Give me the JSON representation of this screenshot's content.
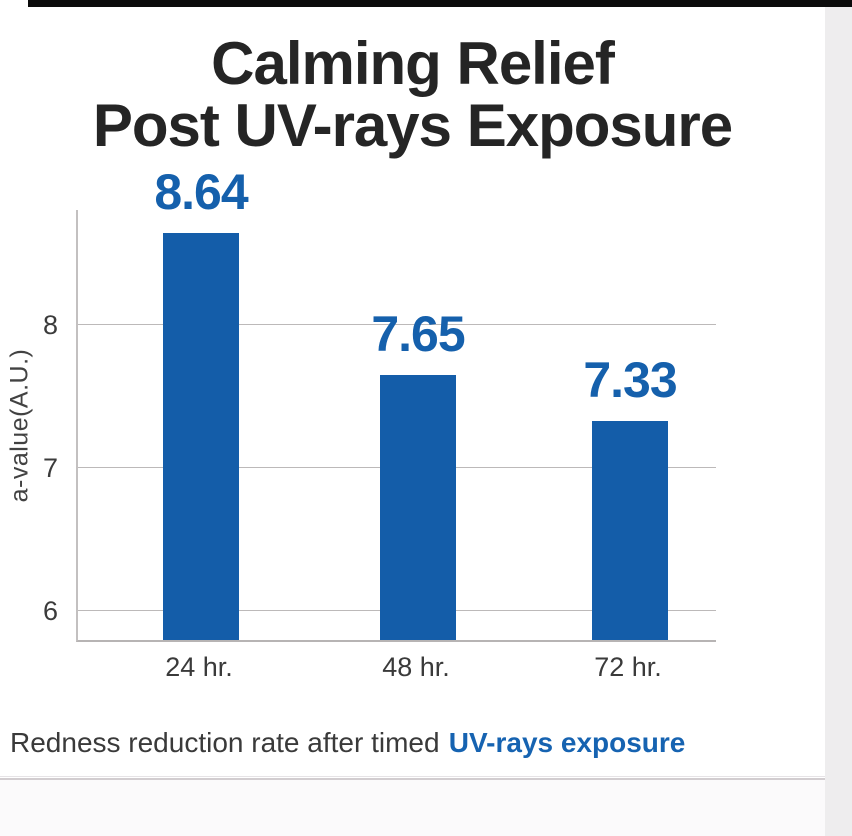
{
  "page": {
    "title_line1": "Calming Relief",
    "title_line2": "Post UV-rays Exposure",
    "caption": {
      "text": "Redness reduction rate after timed",
      "highlight": "UV-rays exposure"
    }
  },
  "chart_data": {
    "type": "bar",
    "title": "Calming Relief Post UV-rays Exposure",
    "categories": [
      "24 hr.",
      "48 hr.",
      "72 hr."
    ],
    "values": [
      8.64,
      7.65,
      7.33
    ],
    "value_labels": [
      "8.64",
      "7.65",
      "7.33"
    ],
    "xlabel": "",
    "ylabel": "a-value(A.U.)",
    "yticks": [
      6,
      7,
      8
    ],
    "ylim": [
      5.8,
      8.8
    ],
    "grid": true,
    "legend": "none",
    "bar_color": "#145da9",
    "value_label_color": "#1560ac"
  },
  "colors": {
    "accent_blue": "#1560ac",
    "caption_highlight": "#1663b1",
    "title_text": "#252525",
    "axis_text": "#3b3b3b",
    "gridline": "#bcb9b9",
    "top_bar": "#0b0b0b",
    "right_strip": "#eeedee",
    "bottom_region": "#fbfafb"
  }
}
